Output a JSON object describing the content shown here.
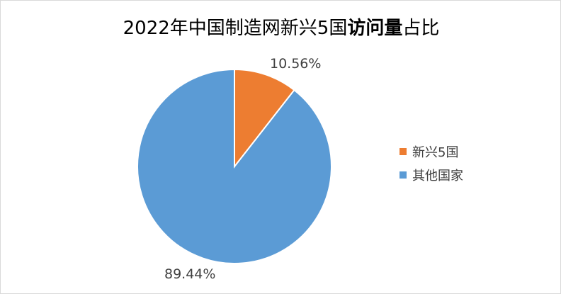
{
  "chart_data": {
    "type": "pie",
    "title_parts": [
      "2022年中国制造网新兴5国",
      "访问量",
      "占比"
    ],
    "categories": [
      "新兴5国",
      "其他国家"
    ],
    "values": [
      10.56,
      89.44
    ],
    "data_labels": [
      "10.56%",
      "89.44%"
    ],
    "colors": [
      "#ED7D31",
      "#5B9BD5"
    ],
    "legend_position": "right"
  }
}
